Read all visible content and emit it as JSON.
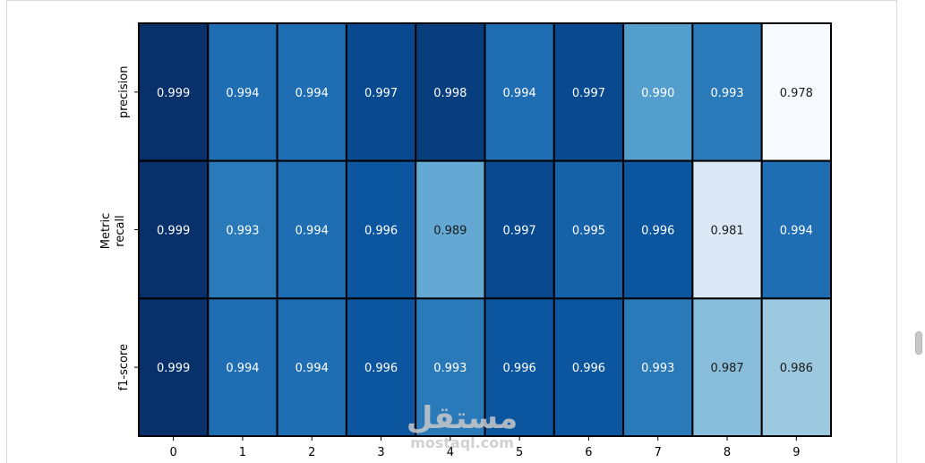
{
  "chart_data": {
    "type": "heatmap",
    "title": "",
    "xlabel": "",
    "ylabel": "Metric",
    "x": [
      "0",
      "1",
      "2",
      "3",
      "4",
      "5",
      "6",
      "7",
      "8",
      "9"
    ],
    "rows": [
      "precision",
      "recall",
      "f1-score"
    ],
    "ylabel_lines": [
      "Metric",
      "recall"
    ],
    "values": [
      [
        0.999,
        0.994,
        0.994,
        0.997,
        0.998,
        0.994,
        0.997,
        0.99,
        0.993,
        0.978
      ],
      [
        0.999,
        0.993,
        0.994,
        0.996,
        0.989,
        0.997,
        0.995,
        0.996,
        0.981,
        0.994
      ],
      [
        0.999,
        0.994,
        0.994,
        0.996,
        0.993,
        0.996,
        0.996,
        0.993,
        0.987,
        0.986
      ]
    ],
    "value_labels": [
      [
        "0.999",
        "0.994",
        "0.994",
        "0.997",
        "0.998",
        "0.994",
        "0.997",
        "0.990",
        "0.993",
        "0.978"
      ],
      [
        "0.999",
        "0.993",
        "0.994",
        "0.996",
        "0.989",
        "0.997",
        "0.995",
        "0.996",
        "0.981",
        "0.994"
      ],
      [
        "0.999",
        "0.994",
        "0.994",
        "0.996",
        "0.993",
        "0.996",
        "0.996",
        "0.993",
        "0.987",
        "0.986"
      ]
    ],
    "colormap": "Blues",
    "color_range": [
      0.978,
      0.999
    ],
    "cell_border_color": "#000000",
    "colorbar": false,
    "grid": false
  },
  "watermark": {
    "arabic": "مستقل",
    "latin": "mostaql.com",
    "color": "#c9c9c9"
  },
  "scrollbar": {
    "thumb_color": "#c8c8c8"
  }
}
